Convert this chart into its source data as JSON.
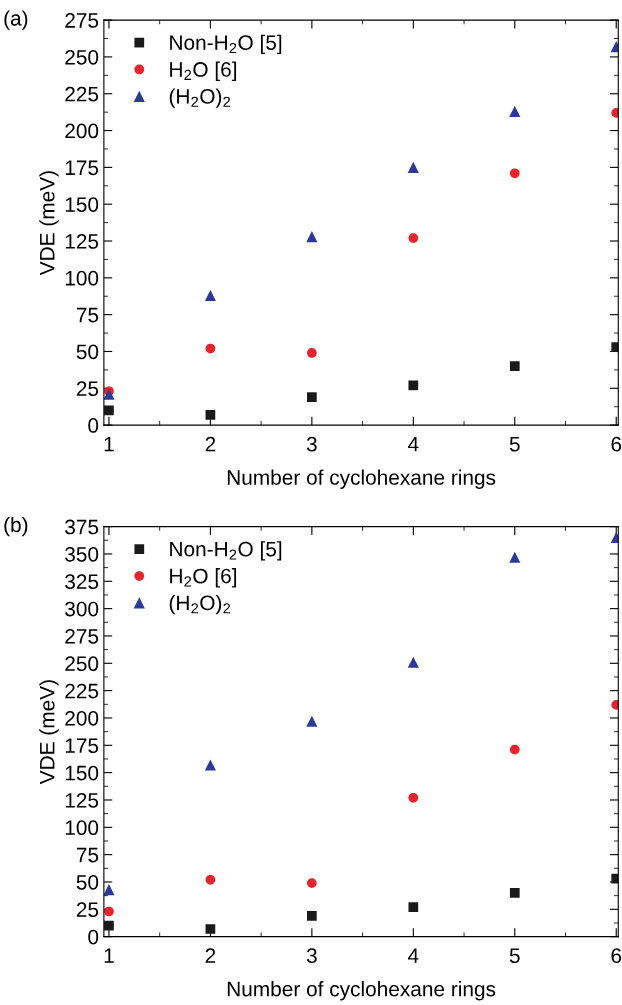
{
  "chart_data": [
    {
      "type": "scatter",
      "annotations": [
        "(a)"
      ],
      "xlabel": "Number of cyclohexane rings",
      "ylabel": "VDE (meV)",
      "x": [
        1,
        2,
        3,
        4,
        5,
        6
      ],
      "xlim": [
        0.95,
        6.02
      ],
      "xticks": [
        1,
        2,
        3,
        4,
        5,
        6
      ],
      "ylim": [
        0,
        275
      ],
      "yticks": [
        0,
        25,
        50,
        75,
        100,
        125,
        150,
        175,
        200,
        225,
        250,
        275
      ],
      "legend": "top left",
      "grid": false,
      "series": [
        {
          "name": "Non-H$_{2}$O [5]",
          "color": "#1a1a1a",
          "marker": "square",
          "values": [
            10,
            7,
            19,
            27,
            40,
            53
          ]
        },
        {
          "name": "H$_{2}$O [6]",
          "color": "#e8232a",
          "marker": "circle",
          "values": [
            23,
            52,
            49,
            127,
            171,
            212
          ]
        },
        {
          "name": "(H$_{2}$O)$_{2}$",
          "color": "#2b3a9a",
          "marker": "triangle",
          "values": [
            21,
            88,
            128,
            175,
            213,
            257
          ]
        }
      ]
    },
    {
      "type": "scatter",
      "annotations": [
        "(b)"
      ],
      "xlabel": "Number of cyclohexane rings",
      "ylabel": "VDE (meV)",
      "x": [
        1,
        2,
        3,
        4,
        5,
        6
      ],
      "xlim": [
        0.95,
        6.02
      ],
      "xticks": [
        1,
        2,
        3,
        4,
        5,
        6
      ],
      "ylim": [
        0,
        375
      ],
      "yticks": [
        0,
        25,
        50,
        75,
        100,
        125,
        150,
        175,
        200,
        225,
        250,
        275,
        300,
        325,
        350,
        375
      ],
      "legend": "top left",
      "grid": false,
      "series": [
        {
          "name": "Non-H$_{2}$O [5]",
          "color": "#1a1a1a",
          "marker": "square",
          "values": [
            10,
            7,
            19,
            27,
            40,
            53
          ]
        },
        {
          "name": "H$_{2}$O [6]",
          "color": "#e8232a",
          "marker": "circle",
          "values": [
            23,
            52,
            49,
            127,
            171,
            212
          ]
        },
        {
          "name": "(H$_{2}$O)$_{2}$",
          "color": "#2b3a9a",
          "marker": "triangle",
          "values": [
            43,
            157,
            197,
            251,
            347,
            365
          ]
        }
      ]
    }
  ]
}
